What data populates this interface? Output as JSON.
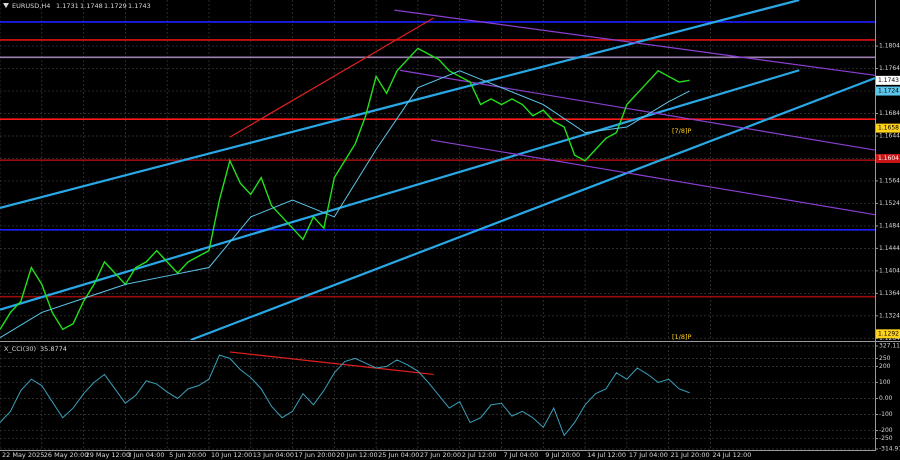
{
  "chart_data": [
    {
      "type": "line",
      "title": "EURUSD,H4",
      "ohlc": [
        1.1731,
        1.1748,
        1.1729,
        1.1743
      ],
      "x": [
        0,
        4,
        8,
        12,
        16,
        20,
        24,
        28,
        32,
        36,
        40,
        44,
        48,
        52,
        56,
        60,
        64,
        68,
        72,
        76,
        80,
        84,
        88,
        92,
        96,
        100,
        104,
        108,
        112,
        116,
        120,
        124,
        128,
        132,
        136,
        140,
        144,
        148,
        152,
        156,
        160,
        164,
        168,
        172,
        176,
        180,
        184,
        188,
        192,
        196,
        200,
        204,
        208,
        212,
        216,
        220,
        224,
        228,
        232,
        236,
        240,
        244,
        248,
        252,
        256,
        260,
        264
      ],
      "series": [
        {
          "color": "#22e01a",
          "values": [
            1.13,
            1.133,
            1.135,
            1.141,
            1.138,
            1.133,
            1.13,
            1.131,
            1.135,
            1.138,
            1.142,
            1.14,
            1.138,
            1.141,
            1.142,
            1.144,
            1.142,
            1.14,
            1.142,
            1.143,
            1.144,
            1.153,
            1.16,
            1.156,
            1.154,
            1.157,
            1.152,
            1.15,
            1.148,
            1.146,
            1.15,
            1.148,
            1.157,
            1.16,
            1.163,
            1.168,
            1.175,
            1.172,
            1.176,
            1.178,
            1.18,
            1.179,
            1.178,
            1.176,
            1.175,
            1.174,
            1.17,
            1.171,
            1.17,
            1.171,
            1.17,
            1.168,
            1.169,
            1.167,
            1.166,
            1.161,
            1.16,
            1.162,
            1.164,
            1.165,
            1.17,
            1.172,
            1.174,
            1.176,
            1.175,
            1.174,
            1.1743
          ]
        },
        {
          "color": "#5cc6ea",
          "x": [
            0,
            16,
            32,
            48,
            64,
            80,
            96,
            112,
            128,
            144,
            160,
            176,
            192,
            208,
            224,
            240,
            256,
            264
          ],
          "values": [
            1.1285,
            1.133,
            1.1355,
            1.138,
            1.1395,
            1.141,
            1.15,
            1.153,
            1.15,
            1.162,
            1.173,
            1.176,
            1.173,
            1.17,
            1.165,
            1.166,
            1.1705,
            1.1724
          ]
        }
      ],
      "xlim": [
        0,
        335
      ],
      "xticks": [
        {
          "value": 0,
          "label": "22 May 2025"
        },
        {
          "value": 16,
          "label": "26 May 20:00"
        },
        {
          "value": 32,
          "label": "29 May 12:00"
        },
        {
          "value": 48,
          "label": "3 Jun 04:00"
        },
        {
          "value": 64,
          "label": "5 Jun 20:00"
        },
        {
          "value": 80,
          "label": "10 Jun 12:00"
        },
        {
          "value": 96,
          "label": "13 Jun 04:00"
        },
        {
          "value": 112,
          "label": "17 Jun 20:00"
        },
        {
          "value": 128,
          "label": "20 Jun 12:00"
        },
        {
          "value": 144,
          "label": "25 Jun 04:00"
        },
        {
          "value": 160,
          "label": "27 Jun 20:00"
        },
        {
          "value": 176,
          "label": "2 Jul 12:00"
        },
        {
          "value": 192,
          "label": "7 Jul 04:00"
        },
        {
          "value": 208,
          "label": "9 Jul 20:00"
        },
        {
          "value": 224,
          "label": "14 Jul 12:00"
        },
        {
          "value": 240,
          "label": "17 Jul 04:00"
        },
        {
          "value": 256,
          "label": "21 Jul 20:00"
        },
        {
          "value": 272,
          "label": "24 Jul 12:00"
        }
      ],
      "ylim": [
        1.1281,
        1.1886
      ],
      "yticks": [
        1.1284,
        1.1324,
        1.1364,
        1.1404,
        1.1444,
        1.1484,
        1.1524,
        1.1564,
        1.1604,
        1.1644,
        1.1684,
        1.1724,
        1.1764,
        1.1804
      ],
      "grid": true,
      "levels": [
        {
          "value": 1.1847,
          "color": "#1f1fff"
        },
        {
          "value": 1.1815,
          "color": "#e01010"
        },
        {
          "value": 1.1784,
          "color": "#9a7fb0"
        },
        {
          "value": 1.1674,
          "color": "#ff1a1a"
        },
        {
          "value": 1.1601,
          "color": "#9a0c0c"
        },
        {
          "value": 1.1477,
          "color": "#1f1fff"
        },
        {
          "value": 1.1358,
          "color": "#9a0c0c"
        }
      ],
      "trendlines": [
        {
          "color": "#2aa8e6",
          "x": [
            0,
            306
          ],
          "values": [
            1.1516,
            1.1886
          ]
        },
        {
          "color": "#2aa8e6",
          "x": [
            0,
            306
          ],
          "values": [
            1.1335,
            1.1761
          ]
        },
        {
          "color": "#2aa8e6",
          "x": [
            73,
            335
          ],
          "values": [
            1.1281,
            1.1747
          ]
        },
        {
          "color": "#8a3fd0",
          "x": [
            151,
            335
          ],
          "values": [
            1.1868,
            1.1752
          ]
        },
        {
          "color": "#8a3fd0",
          "x": [
            153,
            335
          ],
          "values": [
            1.1761,
            1.1619
          ]
        },
        {
          "color": "#8a3fd0",
          "x": [
            165,
            335
          ],
          "values": [
            1.1637,
            1.1504
          ]
        },
        {
          "color": "#e02020",
          "x": [
            88,
            166
          ],
          "values": [
            1.1642,
            1.1854
          ]
        }
      ],
      "price_tags": [
        {
          "value": 1.1743,
          "color": "#ffffff"
        },
        {
          "value": 1.1724,
          "color": "#5cc6ea"
        },
        {
          "value": 1.1658,
          "color": "#ffd21a"
        },
        {
          "value": 1.1604,
          "color": "#c81414"
        },
        {
          "value": 1.1292,
          "color": "#ffd21a"
        }
      ],
      "level_labels": [
        {
          "label": "[7/8]P",
          "value": 1.1658,
          "color": "#ffd21a"
        },
        {
          "label": "[1/8]P",
          "value": 1.1292,
          "color": "#ffd21a"
        }
      ]
    },
    {
      "type": "line",
      "title": "X_CCI(30)",
      "x": [
        0,
        4,
        8,
        12,
        16,
        20,
        24,
        28,
        32,
        36,
        40,
        44,
        48,
        52,
        56,
        60,
        64,
        68,
        72,
        76,
        80,
        84,
        88,
        92,
        96,
        100,
        104,
        108,
        112,
        116,
        120,
        124,
        128,
        132,
        136,
        140,
        144,
        148,
        152,
        156,
        160,
        164,
        168,
        172,
        176,
        180,
        184,
        188,
        192,
        196,
        200,
        204,
        208,
        212,
        216,
        220,
        224,
        228,
        232,
        236,
        240,
        244,
        248,
        252,
        256,
        260,
        264
      ],
      "series": [
        {
          "color": "#3a9fba",
          "values": [
            -150,
            -80,
            50,
            120,
            80,
            -20,
            -120,
            -60,
            30,
            100,
            150,
            60,
            -30,
            20,
            110,
            90,
            40,
            0,
            60,
            80,
            120,
            270,
            250,
            180,
            130,
            60,
            -50,
            -120,
            -80,
            30,
            -40,
            50,
            160,
            230,
            250,
            220,
            190,
            200,
            240,
            210,
            170,
            100,
            20,
            -60,
            -20,
            -150,
            -120,
            -40,
            -30,
            -110,
            -80,
            -120,
            -180,
            -60,
            -230,
            -150,
            -40,
            30,
            60,
            160,
            120,
            190,
            150,
            100,
            120,
            60,
            35.8774
          ]
        }
      ],
      "xlim": [
        0,
        335
      ],
      "ylim": [
        -314.976,
        327.116
      ],
      "yticks": [
        327.116,
        250,
        200,
        100,
        {
          "value": 0,
          "label": "0.00"
        },
        -100,
        -200,
        -250,
        -314.976
      ],
      "trendlines": [
        {
          "color": "#e02020",
          "x": [
            88,
            166
          ],
          "values": [
            290,
            150
          ]
        }
      ]
    }
  ]
}
